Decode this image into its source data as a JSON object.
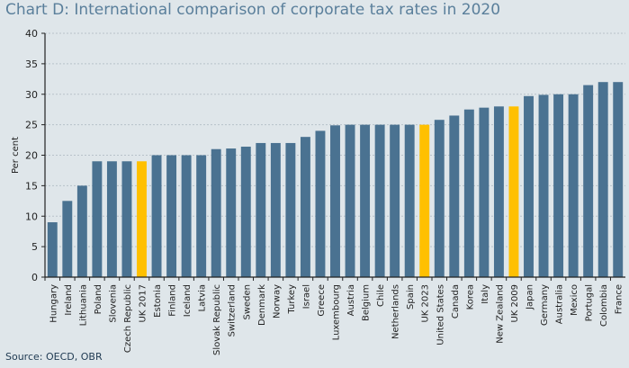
{
  "chart_data": {
    "type": "bar",
    "title": "Chart D:  International comparison of corporate tax rates in 2020",
    "ylabel": "Per cent",
    "xlabel": "",
    "ylim": [
      0,
      40
    ],
    "yticks": [
      0,
      5,
      10,
      15,
      20,
      25,
      30,
      35,
      40
    ],
    "grid": true,
    "categories": [
      "Hungary",
      "Ireland",
      "Lithuania",
      "Poland",
      "Slovenia",
      "Czech Republic",
      "UK 2017",
      "Estonia",
      "Finland",
      "Iceland",
      "Latvia",
      "Slovak Republic",
      "Switzerland",
      "Sweden",
      "Denmark",
      "Norway",
      "Turkey",
      "Israel",
      "Greece",
      "Luxembourg",
      "Austria",
      "Belgium",
      "Chile",
      "Netherlands",
      "Spain",
      "UK 2023",
      "United States",
      "Canada",
      "Korea",
      "Italy",
      "New Zealand",
      "UK 2009",
      "Japan",
      "Germany",
      "Australia",
      "Mexico",
      "Portugal",
      "Colombia",
      "France"
    ],
    "values": [
      9,
      12.5,
      15,
      19,
      19,
      19,
      19,
      20,
      20,
      20,
      20,
      21,
      21.1,
      21.4,
      22,
      22,
      22,
      23,
      24,
      24.9,
      25,
      25,
      25,
      25,
      25,
      25,
      25.8,
      26.5,
      27.5,
      27.8,
      28,
      28,
      29.7,
      29.9,
      30,
      30,
      31.5,
      32,
      32
    ],
    "highlight": [
      "UK 2017",
      "UK 2023",
      "UK 2009"
    ],
    "colors": {
      "bar": "#4a7291",
      "highlight": "#ffc000",
      "background": "#dfe6ea",
      "title": "#5a7f9b"
    }
  },
  "source": "Source: OECD, OBR"
}
